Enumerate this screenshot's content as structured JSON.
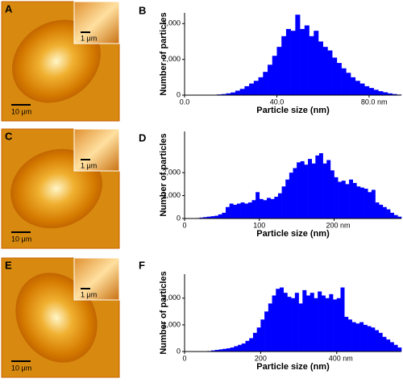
{
  "image_panels": [
    {
      "label": "A",
      "scale_bar": "10 μm",
      "inset_scale_bar": "1 μm"
    },
    {
      "label": "C",
      "scale_bar": "10 μm",
      "inset_scale_bar": "1 μm"
    },
    {
      "label": "E",
      "scale_bar": "10 μm",
      "inset_scale_bar": "1 μm"
    }
  ],
  "chart_data": [
    {
      "type": "histogram",
      "panel_label": "B",
      "x_label": "Particle size (nm)",
      "y_label": "Number of particles",
      "color": "#0000ff",
      "bins": [
        0,
        2,
        4,
        6,
        8,
        10,
        12,
        14,
        16,
        18,
        20,
        22,
        24,
        26,
        28,
        30,
        32,
        34,
        36,
        38,
        40,
        42,
        44,
        46,
        48,
        50,
        52,
        54,
        56,
        58,
        60,
        62,
        64,
        66,
        68,
        70,
        72,
        74,
        76,
        78,
        80,
        82,
        84,
        86,
        88,
        90,
        92,
        94
      ],
      "counts": [
        0,
        0,
        0,
        0,
        0,
        10,
        20,
        40,
        60,
        100,
        150,
        250,
        350,
        500,
        650,
        800,
        1000,
        1300,
        1700,
        2200,
        2700,
        3300,
        3700,
        3600,
        4500,
        3700,
        3900,
        3300,
        3600,
        3000,
        2700,
        2500,
        2100,
        1800,
        1500,
        1250,
        1000,
        800,
        650,
        500,
        400,
        300,
        220,
        160,
        100,
        60,
        30
      ],
      "xlim": [
        0,
        94
      ],
      "xticks": [
        {
          "value": 0,
          "label": "0.0"
        },
        {
          "value": 40,
          "label": "40.0"
        },
        {
          "value": 80,
          "label": "80.0 nm"
        }
      ],
      "ylim": [
        0,
        4600
      ],
      "yticks": [
        0,
        {
          "value": 2000,
          "label": "2,000"
        },
        {
          "value": 4000,
          "label": "4,000"
        }
      ]
    },
    {
      "type": "histogram",
      "panel_label": "D",
      "x_label": "Particle size (nm)",
      "y_label": "Number of particles",
      "color": "#0000ff",
      "bins": [
        0,
        5,
        10,
        15,
        20,
        25,
        30,
        35,
        40,
        45,
        50,
        55,
        60,
        65,
        70,
        75,
        80,
        85,
        90,
        95,
        100,
        105,
        110,
        115,
        120,
        125,
        130,
        135,
        140,
        145,
        150,
        155,
        160,
        165,
        170,
        175,
        180,
        185,
        190,
        195,
        200,
        205,
        210,
        215,
        220,
        225,
        230,
        235,
        240,
        245,
        250,
        255,
        260,
        265,
        270,
        275,
        280,
        285,
        290
      ],
      "counts": [
        0,
        0,
        0,
        20,
        40,
        60,
        80,
        100,
        120,
        180,
        250,
        500,
        650,
        600,
        650,
        700,
        650,
        700,
        800,
        1150,
        850,
        800,
        900,
        850,
        950,
        1100,
        1400,
        1700,
        2000,
        2200,
        2450,
        2500,
        2350,
        2600,
        2400,
        2750,
        2850,
        2400,
        2550,
        2100,
        1800,
        1600,
        1650,
        1500,
        1700,
        1550,
        1400,
        1350,
        1300,
        1150,
        1250,
        700,
        600,
        500,
        400,
        250,
        150,
        80
      ],
      "xlim": [
        0,
        290
      ],
      "xticks": [
        0,
        100,
        {
          "value": 200,
          "label": "200 nm"
        }
      ],
      "ylim": [
        0,
        3800
      ],
      "yticks": [
        0,
        {
          "value": 1000,
          "label": "1,000"
        },
        {
          "value": 2000,
          "label": "2,000"
        }
      ]
    },
    {
      "type": "histogram",
      "panel_label": "F",
      "x_label": "Particle size (nm)",
      "y_label": "Number of particles",
      "color": "#0000ff",
      "bins": [
        0,
        10,
        20,
        30,
        40,
        50,
        60,
        70,
        80,
        90,
        100,
        110,
        120,
        130,
        140,
        150,
        160,
        170,
        180,
        190,
        200,
        210,
        220,
        230,
        240,
        250,
        260,
        270,
        280,
        290,
        300,
        310,
        320,
        330,
        340,
        350,
        360,
        370,
        380,
        390,
        400,
        410,
        420,
        430,
        440,
        450,
        460,
        470,
        480,
        490,
        500,
        510,
        520,
        530,
        540,
        550,
        560,
        570
      ],
      "counts": [
        0,
        0,
        0,
        0,
        0,
        0,
        20,
        40,
        60,
        80,
        100,
        120,
        150,
        200,
        250,
        300,
        400,
        500,
        700,
        900,
        1200,
        1500,
        1800,
        2100,
        2350,
        2400,
        2200,
        2050,
        2000,
        2200,
        1800,
        2300,
        2100,
        2200,
        2000,
        2250,
        2100,
        2000,
        2150,
        1950,
        2000,
        2400,
        1300,
        1200,
        1100,
        1050,
        1100,
        1000,
        950,
        900,
        800,
        700,
        550,
        450,
        350,
        250,
        150
      ],
      "xlim": [
        0,
        570
      ],
      "xticks": [
        0,
        200,
        {
          "value": 400,
          "label": "400 nm"
        }
      ],
      "ylim": [
        0,
        2900
      ],
      "yticks": [
        0,
        {
          "value": 1000,
          "label": "1,000"
        },
        {
          "value": 2000,
          "label": "2,000"
        }
      ]
    }
  ]
}
